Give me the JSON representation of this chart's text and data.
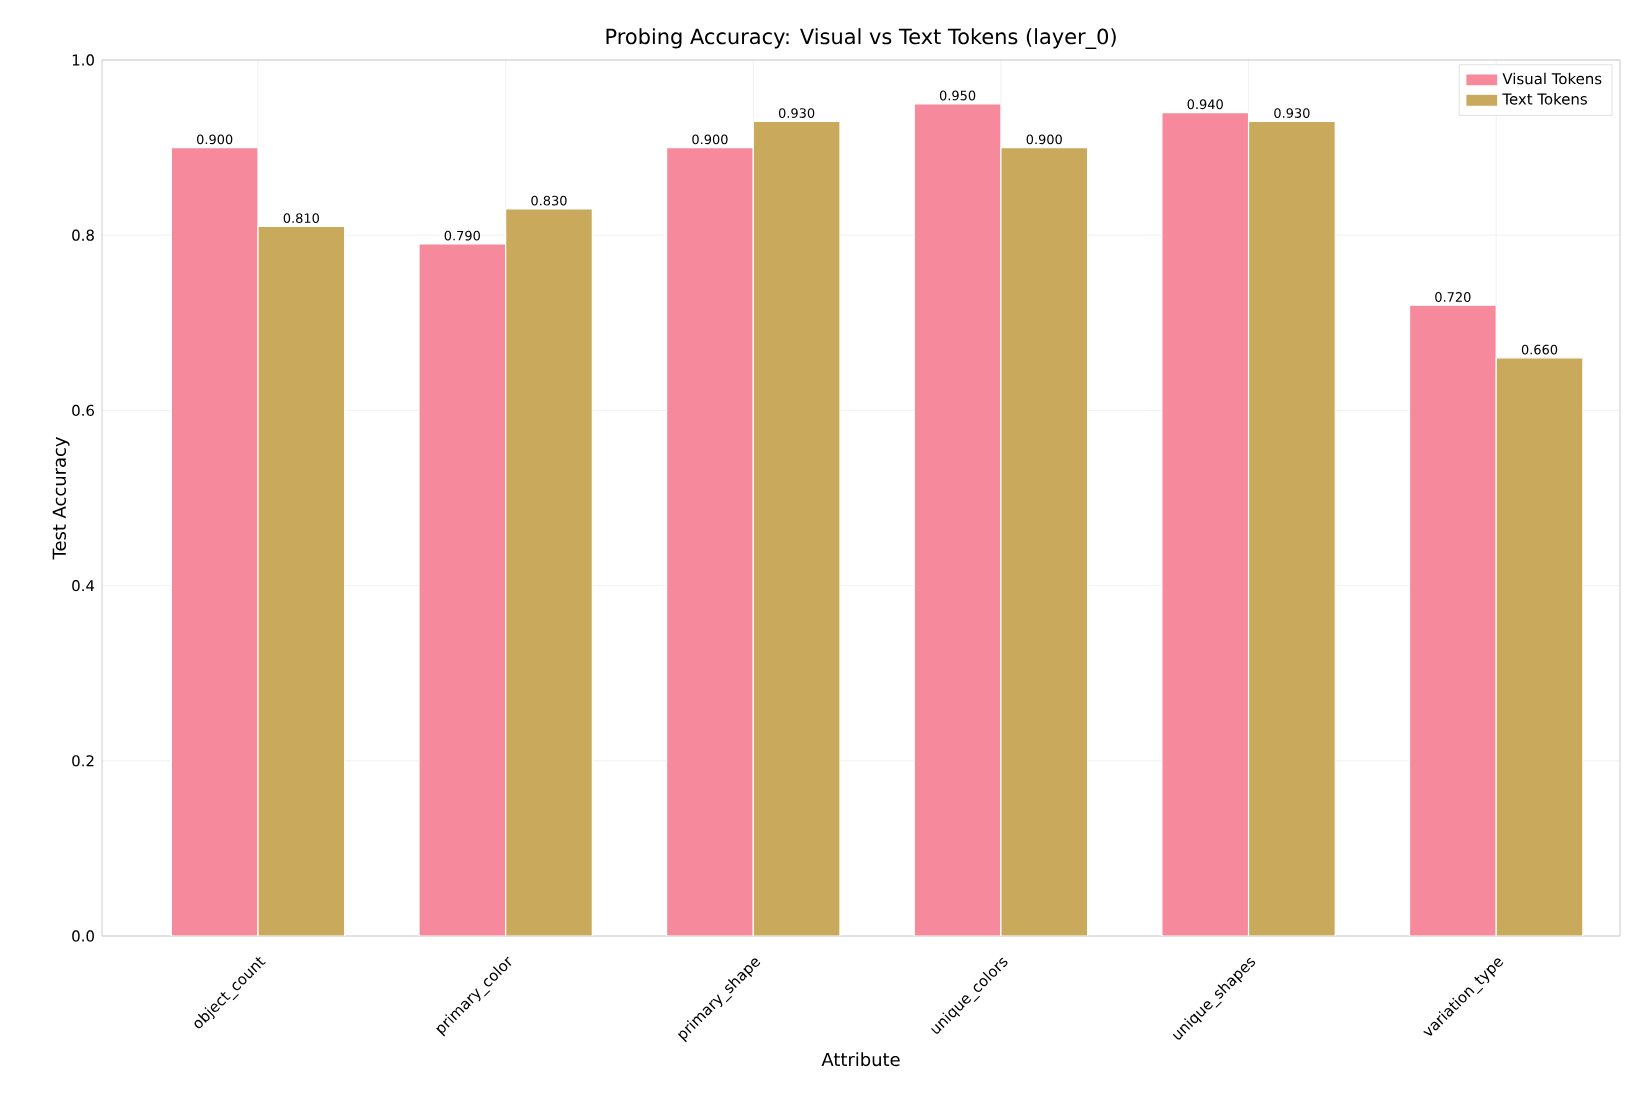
{
  "chart_data": {
    "type": "bar",
    "title": "Probing Accuracy: Visual vs Text Tokens (layer_0)",
    "xlabel": "Attribute",
    "ylabel": "Test Accuracy",
    "categories": [
      "object_count",
      "primary_color",
      "primary_shape",
      "unique_colors",
      "unique_shapes",
      "variation_type"
    ],
    "series": [
      {
        "name": "Visual Tokens",
        "color": "#f6899b",
        "values": [
          0.9,
          0.79,
          0.9,
          0.95,
          0.94,
          0.72
        ],
        "value_labels": [
          "0.900",
          "0.790",
          "0.900",
          "0.950",
          "0.940",
          "0.720"
        ]
      },
      {
        "name": "Text Tokens",
        "color": "#c9a95b",
        "values": [
          0.81,
          0.83,
          0.93,
          0.9,
          0.93,
          0.66
        ],
        "value_labels": [
          "0.810",
          "0.830",
          "0.930",
          "0.900",
          "0.930",
          "0.660"
        ]
      }
    ],
    "ylim": [
      0,
      1
    ],
    "yticks": [
      {
        "value": 0,
        "label": "0.0"
      },
      {
        "value": 0.2,
        "label": "0.2"
      },
      {
        "value": 0.4,
        "label": "0.4"
      },
      {
        "value": 0.6,
        "label": "0.6"
      },
      {
        "value": 0.8,
        "label": "0.8"
      },
      {
        "value": 1,
        "label": "1.0"
      }
    ],
    "grid": true,
    "legend": "top right"
  }
}
